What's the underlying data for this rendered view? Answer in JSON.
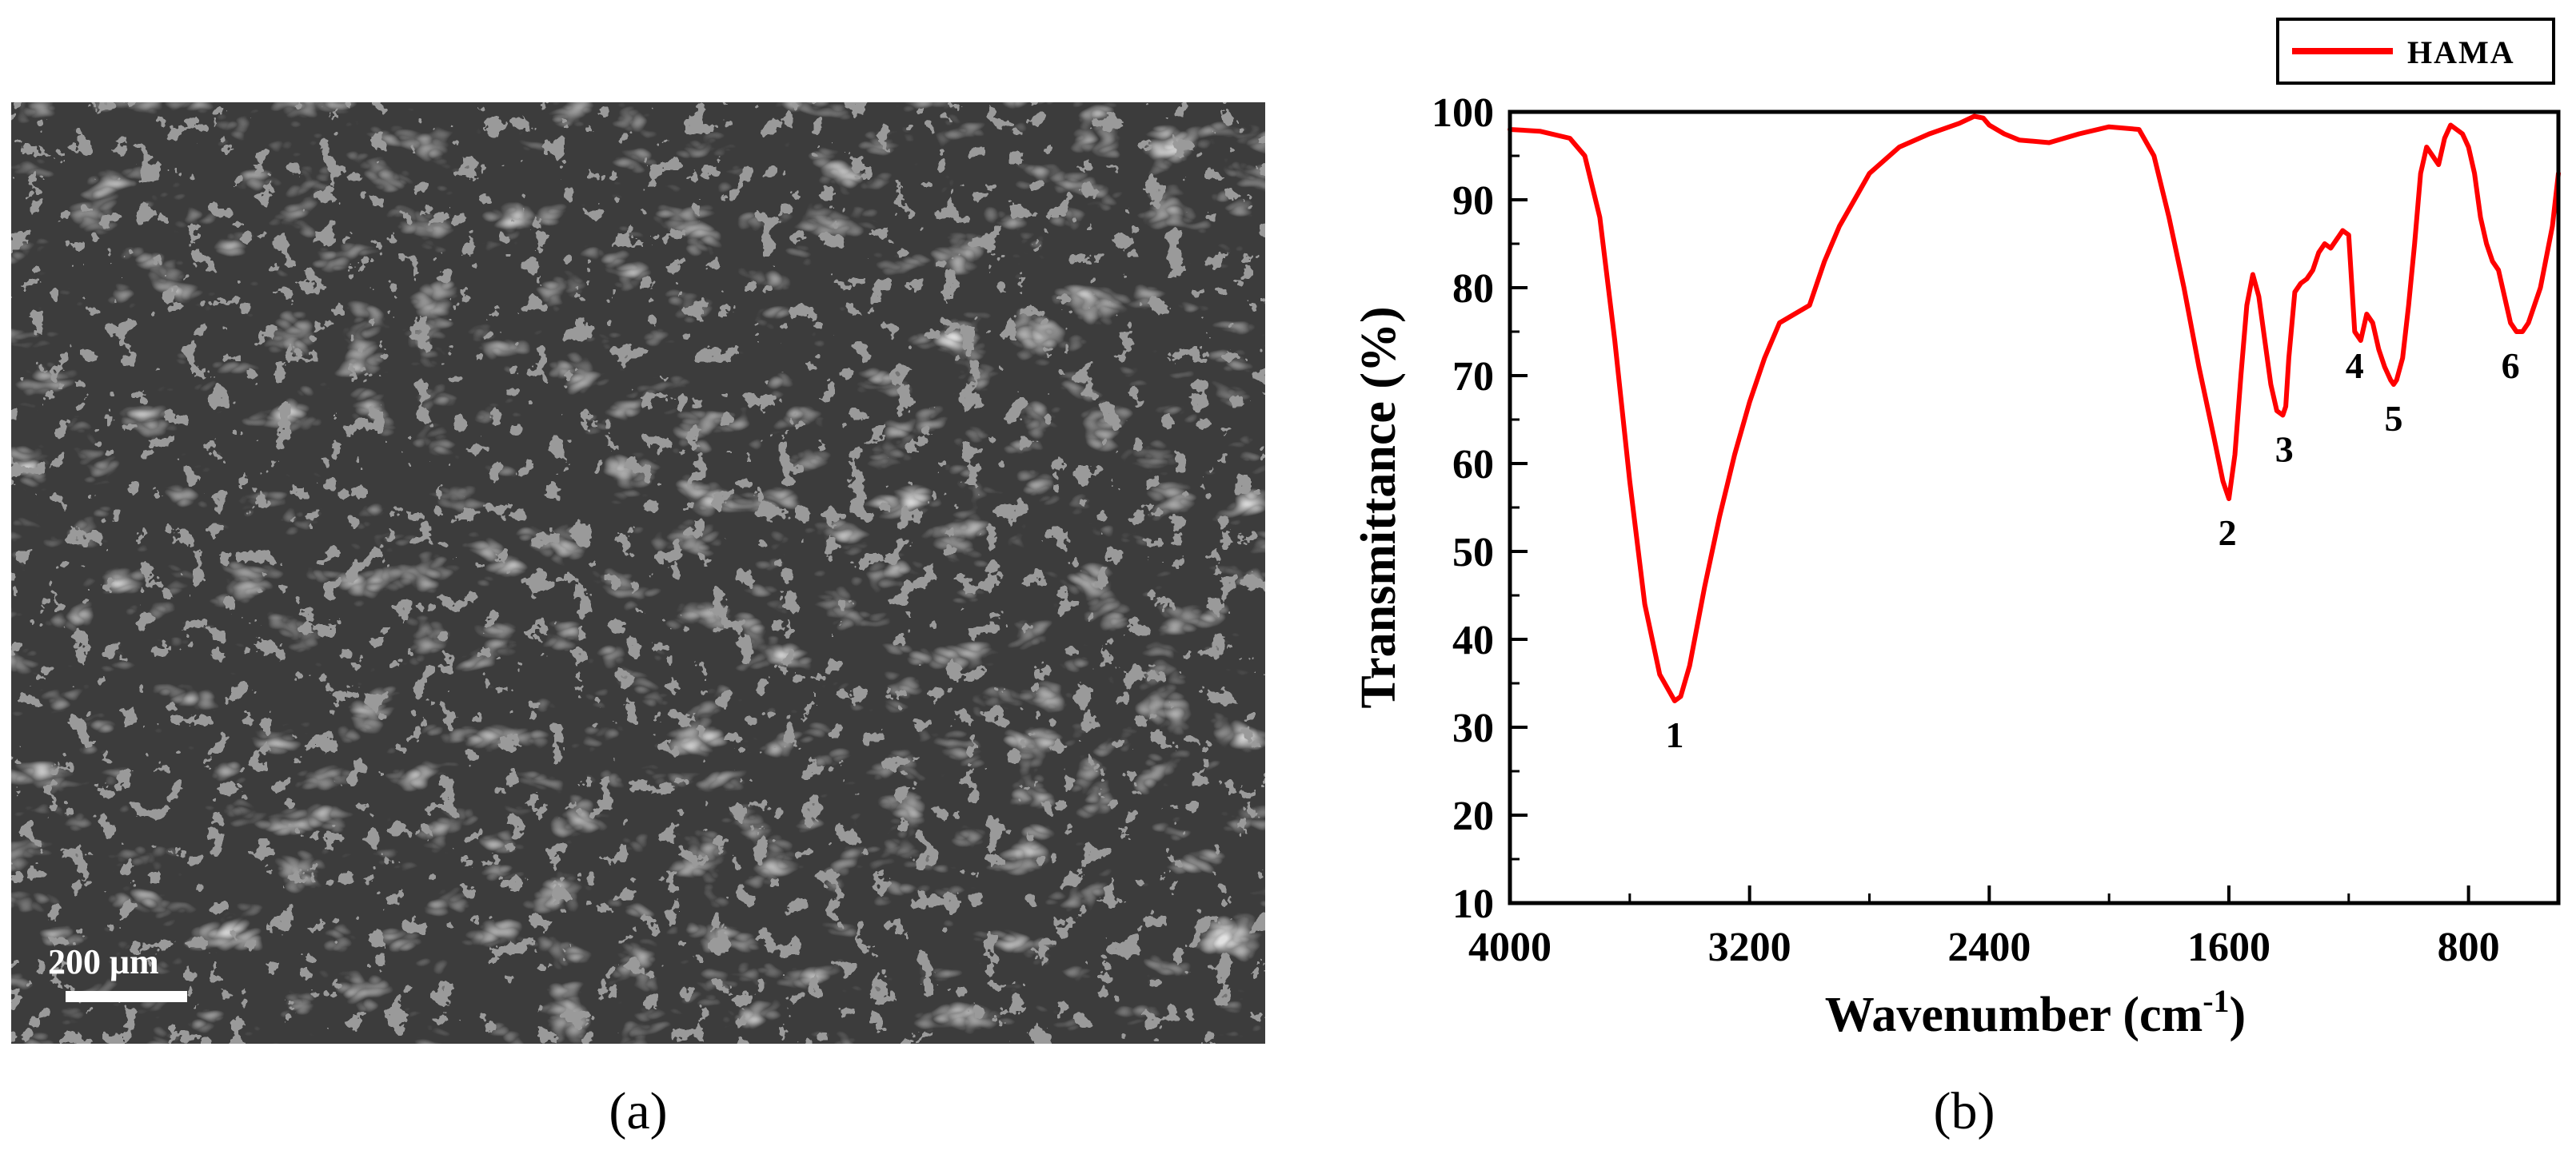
{
  "panels": {
    "a_label": "(a)",
    "b_label": "(b)"
  },
  "sem_image": {
    "scale_bar_label": "200 μm",
    "description_icon": "sem-micrograph-porous-network"
  },
  "colors": {
    "series": "#ff0000",
    "axis": "#000000",
    "sem_dark": "#3a3a3a",
    "sem_fiber": "#a9a9a9"
  },
  "chart_data": {
    "type": "line",
    "title": "",
    "xlabel": "Wavenumber (cm",
    "xlabel_sup": "-1",
    "xlabel_close": ")",
    "ylabel": "Transmittance (%)",
    "xlim": [
      4000,
      500
    ],
    "ylim": [
      10,
      100
    ],
    "x_reversed": true,
    "xticks": [
      4000,
      3200,
      2400,
      1600,
      800
    ],
    "xtick_labels": [
      "4000",
      "3200",
      "2400",
      "1600",
      "800"
    ],
    "yticks": [
      10,
      20,
      30,
      40,
      50,
      60,
      70,
      80,
      90,
      100
    ],
    "ytick_labels": [
      "10",
      "20",
      "30",
      "40",
      "50",
      "60",
      "70",
      "80",
      "90",
      "100"
    ],
    "grid": false,
    "legend_position": "top-right",
    "series": [
      {
        "name": "HAMA",
        "x": [
          4000,
          3900,
          3800,
          3750,
          3700,
          3650,
          3600,
          3550,
          3500,
          3450,
          3430,
          3400,
          3350,
          3300,
          3250,
          3200,
          3150,
          3100,
          3050,
          3000,
          2950,
          2900,
          2850,
          2800,
          2700,
          2600,
          2500,
          2450,
          2420,
          2400,
          2350,
          2300,
          2200,
          2100,
          2000,
          1900,
          1850,
          1800,
          1750,
          1700,
          1650,
          1620,
          1600,
          1580,
          1560,
          1540,
          1520,
          1500,
          1480,
          1460,
          1440,
          1420,
          1410,
          1400,
          1380,
          1360,
          1340,
          1320,
          1300,
          1280,
          1260,
          1240,
          1220,
          1200,
          1180,
          1160,
          1140,
          1120,
          1100,
          1080,
          1060,
          1050,
          1040,
          1020,
          1000,
          980,
          960,
          940,
          920,
          900,
          880,
          860,
          840,
          820,
          800,
          780,
          760,
          740,
          720,
          700,
          680,
          660,
          640,
          620,
          600,
          560,
          520,
          500
        ],
        "y": [
          98,
          97.8,
          97,
          95,
          88,
          74,
          58,
          44,
          36,
          33,
          33.5,
          37,
          46,
          54,
          61,
          67,
          72,
          76,
          77,
          78,
          83,
          87,
          90,
          93,
          96,
          97.5,
          98.7,
          99.5,
          99.3,
          98.5,
          97.5,
          96.8,
          96.5,
          97.5,
          98.3,
          98,
          95,
          88,
          80,
          71,
          63,
          58,
          56,
          61,
          70,
          78,
          81.5,
          79,
          74,
          69,
          66,
          65.5,
          66.5,
          72,
          79.5,
          80.5,
          81,
          82,
          84,
          85,
          84.5,
          85.5,
          86.5,
          86,
          75,
          74,
          77,
          76,
          73,
          71,
          69.5,
          69,
          69.5,
          72,
          78,
          85,
          93,
          96,
          95,
          94,
          97,
          98.5,
          98,
          97.5,
          96,
          93,
          88,
          85,
          83,
          82,
          79,
          76,
          75,
          75,
          76,
          80,
          87,
          93
        ]
      }
    ],
    "annotations": [
      {
        "label": "1",
        "x": 3450,
        "y": 33
      },
      {
        "label": "2",
        "x": 1605,
        "y": 56
      },
      {
        "label": "3",
        "x": 1415,
        "y": 65.5
      },
      {
        "label": "4",
        "x": 1180,
        "y": 75
      },
      {
        "label": "5",
        "x": 1050,
        "y": 69
      },
      {
        "label": "6",
        "x": 660,
        "y": 75
      }
    ]
  }
}
